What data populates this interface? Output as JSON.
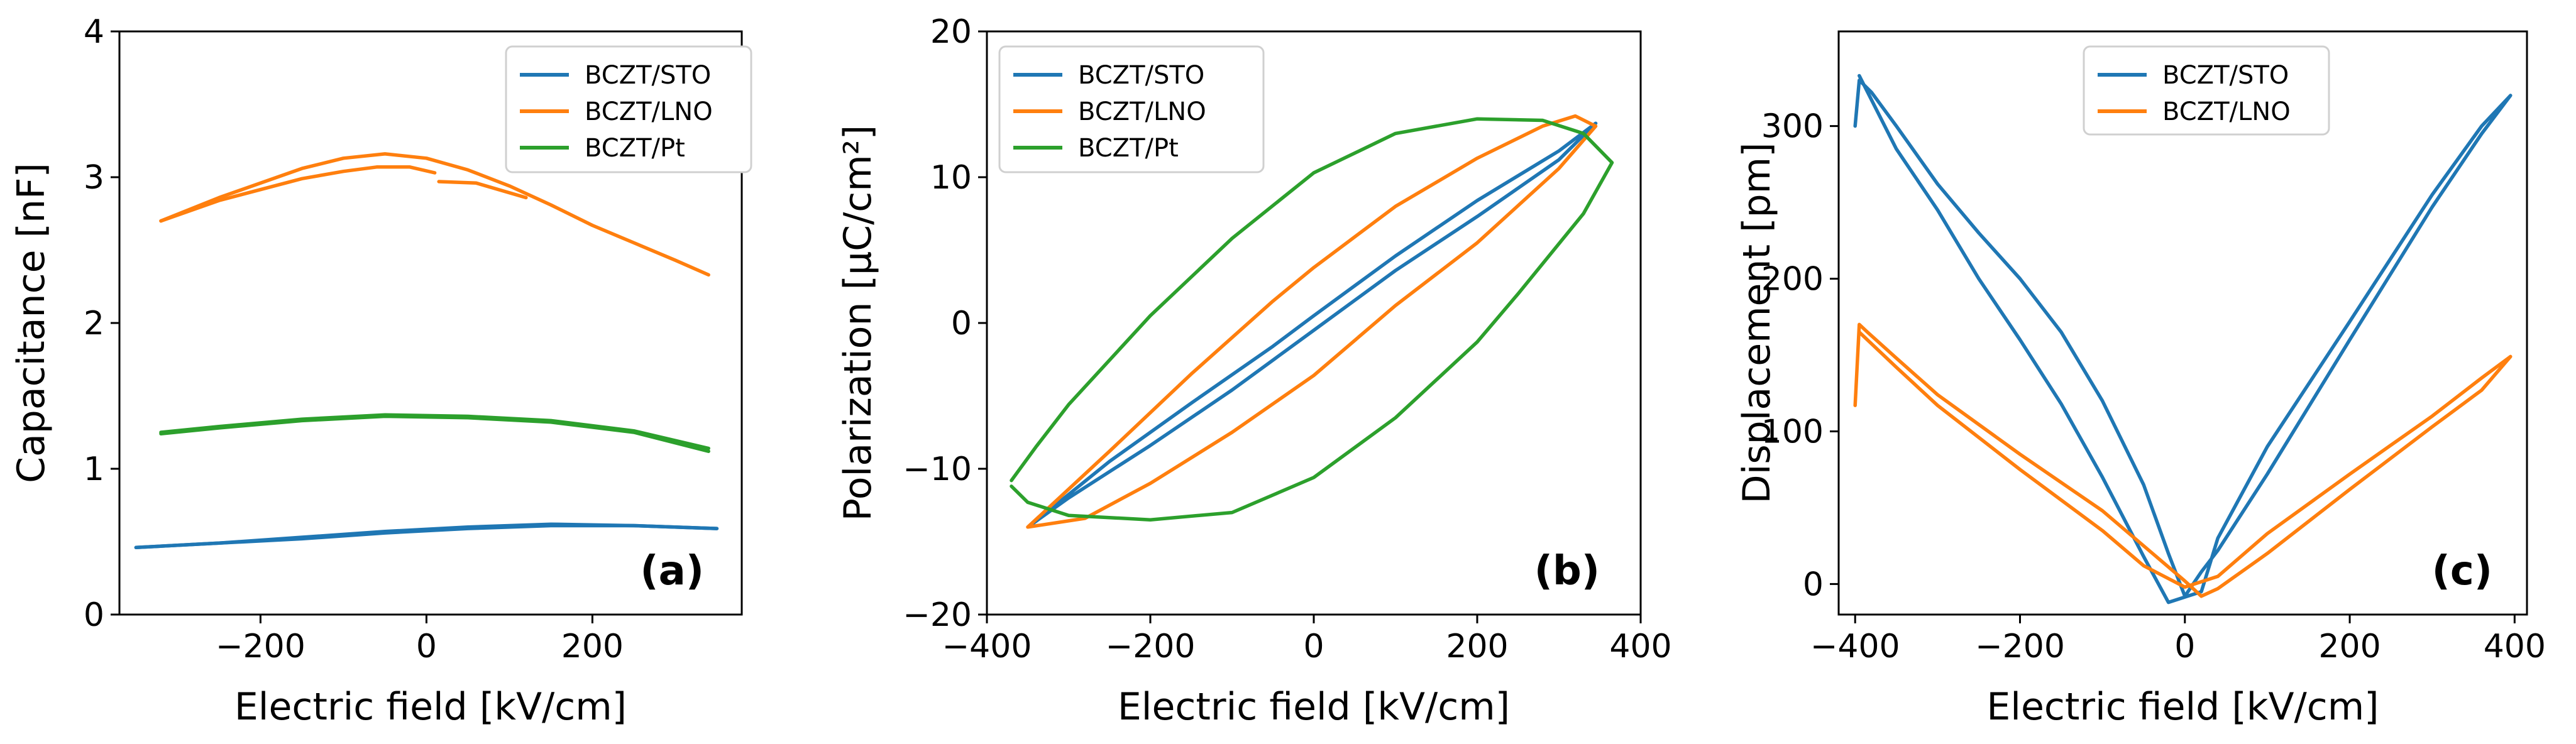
{
  "colors": {
    "BCZT/STO": "#1f77b4",
    "BCZT/LNO": "#ff7f0e",
    "BCZT/Pt": "#2ca02c"
  },
  "chart_data": [
    {
      "id": "a",
      "type": "line",
      "panel_label": "(a)",
      "xlabel": "Electric field [kV/cm]",
      "ylabel": "Capacitance [nF]",
      "xlim": [
        -370,
        380
      ],
      "ylim": [
        0,
        4
      ],
      "xticks": [
        -200,
        0,
        200
      ],
      "xtick_labels": [
        "−200",
        "0",
        "200"
      ],
      "yticks": [
        0,
        1,
        2,
        3,
        4
      ],
      "ytick_labels": [
        "0",
        "1",
        "2",
        "3",
        "4"
      ],
      "legend_position": "top-right",
      "series": [
        {
          "name": "BCZT/STO",
          "segments": [
            [
              [
                -350,
                0.46
              ],
              [
                -250,
                0.49
              ],
              [
                -150,
                0.53
              ],
              [
                -50,
                0.57
              ],
              [
                50,
                0.6
              ],
              [
                150,
                0.62
              ],
              [
                250,
                0.61
              ],
              [
                350,
                0.59
              ]
            ],
            [
              [
                350,
                0.59
              ],
              [
                250,
                0.61
              ],
              [
                150,
                0.61
              ],
              [
                50,
                0.59
              ],
              [
                -50,
                0.56
              ],
              [
                -150,
                0.52
              ],
              [
                -250,
                0.49
              ],
              [
                -350,
                0.46
              ]
            ]
          ]
        },
        {
          "name": "BCZT/LNO",
          "segments": [
            [
              [
                -320,
                2.7
              ],
              [
                -250,
                2.86
              ],
              [
                -150,
                3.06
              ],
              [
                -100,
                3.13
              ],
              [
                -50,
                3.16
              ],
              [
                0,
                3.13
              ],
              [
                50,
                3.05
              ],
              [
                100,
                2.94
              ],
              [
                150,
                2.81
              ],
              [
                200,
                2.67
              ],
              [
                250,
                2.55
              ],
              [
                300,
                2.43
              ],
              [
                340,
                2.33
              ]
            ],
            [
              [
                -320,
                2.7
              ],
              [
                -250,
                2.84
              ],
              [
                -150,
                2.99
              ],
              [
                -100,
                3.04
              ],
              [
                -60,
                3.07
              ],
              [
                -20,
                3.07
              ],
              [
                10,
                3.03
              ]
            ],
            [
              [
                15,
                2.97
              ],
              [
                60,
                2.96
              ],
              [
                120,
                2.86
              ]
            ]
          ]
        },
        {
          "name": "BCZT/Pt",
          "segments": [
            [
              [
                -320,
                1.25
              ],
              [
                -250,
                1.29
              ],
              [
                -150,
                1.34
              ],
              [
                -50,
                1.37
              ],
              [
                50,
                1.36
              ],
              [
                150,
                1.33
              ],
              [
                250,
                1.26
              ],
              [
                340,
                1.14
              ]
            ],
            [
              [
                340,
                1.12
              ],
              [
                250,
                1.25
              ],
              [
                150,
                1.32
              ],
              [
                50,
                1.35
              ],
              [
                -50,
                1.36
              ],
              [
                -150,
                1.33
              ],
              [
                -250,
                1.28
              ],
              [
                -320,
                1.24
              ]
            ]
          ]
        }
      ]
    },
    {
      "id": "b",
      "type": "line",
      "panel_label": "(b)",
      "xlabel": "Electric field [kV/cm]",
      "ylabel": "Polarization [μC/cm²]",
      "xlim": [
        -400,
        400
      ],
      "ylim": [
        -20,
        20
      ],
      "xticks": [
        -400,
        -200,
        0,
        200,
        400
      ],
      "xtick_labels": [
        "−400",
        "−200",
        "0",
        "200",
        "400"
      ],
      "yticks": [
        -20,
        -10,
        0,
        10,
        20
      ],
      "ytick_labels": [
        "−20",
        "−10",
        "0",
        "10",
        "20"
      ],
      "legend_position": "top-left",
      "series": [
        {
          "name": "BCZT/STO",
          "segments": [
            [
              [
                -345,
                -13.8
              ],
              [
                -250,
                -9.5
              ],
              [
                -150,
                -5.5
              ],
              [
                -50,
                -1.6
              ],
              [
                0,
                0.5
              ],
              [
                100,
                4.6
              ],
              [
                200,
                8.4
              ],
              [
                300,
                11.8
              ],
              [
                345,
                13.7
              ],
              [
                300,
                11.2
              ],
              [
                200,
                7.3
              ],
              [
                100,
                3.6
              ],
              [
                0,
                -0.5
              ],
              [
                -100,
                -4.6
              ],
              [
                -200,
                -8.4
              ],
              [
                -300,
                -12
              ],
              [
                -345,
                -13.8
              ]
            ]
          ]
        },
        {
          "name": "BCZT/LNO",
          "segments": [
            [
              [
                -350,
                -14
              ],
              [
                -250,
                -8.8
              ],
              [
                -150,
                -3.5
              ],
              [
                -50,
                1.5
              ],
              [
                0,
                3.8
              ],
              [
                100,
                8
              ],
              [
                200,
                11.3
              ],
              [
                280,
                13.5
              ],
              [
                320,
                14.2
              ],
              [
                345,
                13.5
              ],
              [
                300,
                10.6
              ],
              [
                200,
                5.5
              ],
              [
                100,
                1.2
              ],
              [
                0,
                -3.6
              ],
              [
                -100,
                -7.5
              ],
              [
                -200,
                -11
              ],
              [
                -280,
                -13.4
              ],
              [
                -350,
                -14
              ]
            ]
          ]
        },
        {
          "name": "BCZT/Pt",
          "segments": [
            [
              [
                -370,
                -10.8
              ],
              [
                -340,
                -8.5
              ],
              [
                -300,
                -5.6
              ],
              [
                -200,
                0.5
              ],
              [
                -100,
                5.8
              ],
              [
                0,
                10.3
              ],
              [
                100,
                13
              ],
              [
                200,
                14
              ],
              [
                280,
                13.9
              ],
              [
                330,
                13
              ],
              [
                365,
                11
              ],
              [
                330,
                7.5
              ],
              [
                250,
                2
              ],
              [
                200,
                -1.3
              ],
              [
                100,
                -6.5
              ],
              [
                0,
                -10.6
              ],
              [
                -100,
                -13
              ],
              [
                -200,
                -13.5
              ],
              [
                -300,
                -13.2
              ],
              [
                -350,
                -12.3
              ],
              [
                -370,
                -11.2
              ]
            ]
          ]
        }
      ]
    },
    {
      "id": "c",
      "type": "line",
      "panel_label": "(c)",
      "xlabel": "Electric field [kV/cm]",
      "ylabel": "Displacement [pm]",
      "xlim": [
        -420,
        415
      ],
      "ylim": [
        -20,
        362
      ],
      "xticks": [
        -400,
        -200,
        0,
        200,
        400
      ],
      "xtick_labels": [
        "−400",
        "−200",
        "0",
        "200",
        "400"
      ],
      "yticks": [
        0,
        100,
        200,
        300
      ],
      "ytick_labels": [
        "0",
        "100",
        "200",
        "300"
      ],
      "legend_position": "top-center",
      "series": [
        {
          "name": "BCZT/STO",
          "segments": [
            [
              [
                -400,
                300
              ],
              [
                -395,
                330
              ],
              [
                -380,
                322
              ],
              [
                -350,
                300
              ],
              [
                -300,
                262
              ],
              [
                -250,
                230
              ],
              [
                -200,
                200
              ],
              [
                -150,
                165
              ],
              [
                -100,
                120
              ],
              [
                -50,
                65
              ],
              [
                -20,
                20
              ],
              [
                0,
                -8
              ],
              [
                20,
                8
              ],
              [
                40,
                22
              ],
              [
                100,
                72
              ],
              [
                200,
                160
              ],
              [
                300,
                247
              ],
              [
                360,
                295
              ],
              [
                395,
                320
              ],
              [
                360,
                300
              ],
              [
                300,
                255
              ],
              [
                200,
                172
              ],
              [
                100,
                90
              ],
              [
                40,
                30
              ],
              [
                20,
                -5
              ],
              [
                -20,
                -12
              ],
              [
                -50,
                18
              ],
              [
                -100,
                70
              ],
              [
                -150,
                118
              ],
              [
                -200,
                160
              ],
              [
                -250,
                200
              ],
              [
                -300,
                245
              ],
              [
                -350,
                285
              ],
              [
                -395,
                333
              ]
            ]
          ]
        },
        {
          "name": "BCZT/LNO",
          "segments": [
            [
              [
                -400,
                117
              ],
              [
                -395,
                170
              ],
              [
                -385,
                165
              ],
              [
                -350,
                148
              ],
              [
                -300,
                124
              ],
              [
                -200,
                85
              ],
              [
                -100,
                48
              ],
              [
                -50,
                25
              ],
              [
                0,
                2
              ],
              [
                20,
                -8
              ],
              [
                40,
                -3
              ],
              [
                100,
                20
              ],
              [
                200,
                62
              ],
              [
                300,
                103
              ],
              [
                360,
                127
              ],
              [
                395,
                149
              ],
              [
                360,
                135
              ],
              [
                300,
                110
              ],
              [
                200,
                72
              ],
              [
                100,
                33
              ],
              [
                40,
                5
              ],
              [
                0,
                -2
              ],
              [
                -50,
                12
              ],
              [
                -100,
                35
              ],
              [
                -200,
                75
              ],
              [
                -300,
                117
              ],
              [
                -350,
                142
              ],
              [
                -395,
                165
              ]
            ]
          ]
        }
      ]
    }
  ]
}
